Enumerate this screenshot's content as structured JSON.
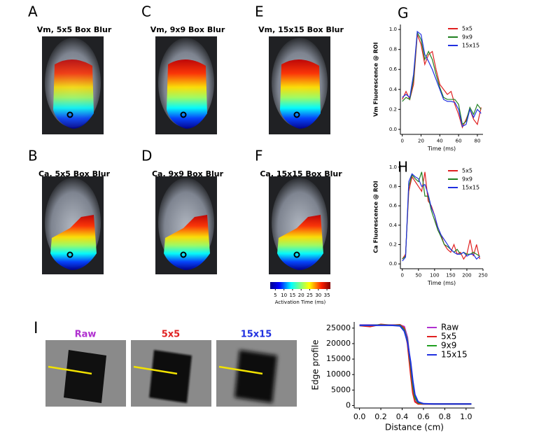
{
  "image_panels": [
    {
      "letter": "A",
      "title": "Vm, 5x5 Box Blur"
    },
    {
      "letter": "C",
      "title": "Vm, 9x9 Box Blur"
    },
    {
      "letter": "E",
      "title": "Vm, 15x15 Box Blur"
    },
    {
      "letter": "B",
      "title": "Ca, 5x5 Box Blur"
    },
    {
      "letter": "D",
      "title": "Ca, 9x9 Box Blur"
    },
    {
      "letter": "F",
      "title": "Ca, 15x15 Box Blur"
    }
  ],
  "colorbar": {
    "label": "Activation Time (ms)",
    "lim": [
      2,
      37
    ],
    "ticks": [
      5,
      10,
      15,
      20,
      25,
      30,
      35
    ]
  },
  "edge_images": {
    "letter": "I",
    "labels": [
      {
        "text": "Raw",
        "color": "#b030d0"
      },
      {
        "text": "5x5",
        "color": "#e02020"
      },
      {
        "text": "15x15",
        "color": "#2030e0"
      }
    ]
  },
  "chart_data": [
    {
      "type": "line",
      "panel": "G",
      "ylabel": "Vm Fluorescence @ ROI",
      "xlabel": "Time (ms)",
      "xlim": [
        -2,
        86
      ],
      "ylim": [
        -0.05,
        1.05
      ],
      "xticks": [
        0,
        20,
        40,
        60,
        80
      ],
      "yticks": [
        {
          "value": 0,
          "label": "0.0"
        },
        0.2,
        0.4,
        0.6,
        0.8,
        {
          "value": 1,
          "label": "1.0"
        }
      ],
      "legend": "upper right",
      "x": [
        0,
        4,
        8,
        12,
        16,
        20,
        24,
        28,
        32,
        36,
        40,
        44,
        48,
        52,
        56,
        60,
        64,
        68,
        72,
        76,
        80,
        84
      ],
      "series": [
        {
          "name": "5x5",
          "color": "#e02020",
          "values": [
            0.3,
            0.38,
            0.3,
            0.45,
            0.95,
            0.85,
            0.65,
            0.75,
            0.78,
            0.6,
            0.45,
            0.4,
            0.35,
            0.38,
            0.25,
            0.15,
            0.02,
            0.1,
            0.2,
            0.1,
            0.05,
            0.22
          ]
        },
        {
          "name": "9x9",
          "color": "#208020",
          "values": [
            0.28,
            0.32,
            0.3,
            0.5,
            0.97,
            0.9,
            0.7,
            0.78,
            0.7,
            0.55,
            0.42,
            0.32,
            0.3,
            0.3,
            0.3,
            0.25,
            0.05,
            0.08,
            0.22,
            0.15,
            0.25,
            0.2
          ]
        },
        {
          "name": "15x15",
          "color": "#2030e0",
          "values": [
            0.32,
            0.35,
            0.32,
            0.55,
            0.98,
            0.95,
            0.75,
            0.68,
            0.6,
            0.5,
            0.4,
            0.3,
            0.28,
            0.28,
            0.27,
            0.2,
            0.03,
            0.05,
            0.2,
            0.12,
            0.2,
            0.16
          ]
        }
      ]
    },
    {
      "type": "line",
      "panel": "H",
      "ylabel": "Ca Fluorescence @ ROI",
      "xlabel": "Time (ms)",
      "xlim": [
        -6,
        250
      ],
      "ylim": [
        -0.05,
        1.02
      ],
      "xticks": [
        0,
        50,
        100,
        150,
        200,
        250
      ],
      "yticks": [
        {
          "value": 0,
          "label": "0.0"
        },
        0.2,
        0.4,
        0.6,
        0.8,
        {
          "value": 1,
          "label": "1.0"
        }
      ],
      "legend": "upper right",
      "x": [
        0,
        10,
        20,
        30,
        40,
        50,
        60,
        70,
        80,
        90,
        100,
        110,
        120,
        130,
        140,
        150,
        160,
        170,
        180,
        190,
        200,
        210,
        220,
        230,
        240
      ],
      "series": [
        {
          "name": "5x5",
          "color": "#e02020",
          "values": [
            0.05,
            0.1,
            0.75,
            0.9,
            0.85,
            0.8,
            0.75,
            0.95,
            0.65,
            0.6,
            0.5,
            0.35,
            0.3,
            0.2,
            0.15,
            0.12,
            0.2,
            0.1,
            0.12,
            0.05,
            0.1,
            0.25,
            0.08,
            0.2,
            0.05
          ]
        },
        {
          "name": "9x9",
          "color": "#208020",
          "values": [
            0.05,
            0.08,
            0.8,
            0.92,
            0.88,
            0.85,
            0.95,
            0.7,
            0.7,
            0.55,
            0.45,
            0.35,
            0.28,
            0.2,
            0.18,
            0.15,
            0.12,
            0.15,
            0.1,
            0.12,
            0.1,
            0.1,
            0.12,
            0.1,
            0.08
          ]
        },
        {
          "name": "15x15",
          "color": "#2030e0",
          "values": [
            0.03,
            0.07,
            0.85,
            0.93,
            0.9,
            0.88,
            0.8,
            0.82,
            0.72,
            0.58,
            0.5,
            0.38,
            0.3,
            0.25,
            0.2,
            0.15,
            0.12,
            0.1,
            0.1,
            0.12,
            0.08,
            0.1,
            0.1,
            0.05,
            0.08
          ]
        }
      ]
    },
    {
      "type": "line",
      "panel": "",
      "ylabel": "Edge profile",
      "xlabel": "Distance (cm)",
      "xlim": [
        -0.05,
        1.08
      ],
      "ylim": [
        -800,
        27000
      ],
      "xticks": [
        {
          "value": 0,
          "label": "0.0"
        },
        0.2,
        0.4,
        0.6,
        0.8,
        {
          "value": 1,
          "label": "1.0"
        }
      ],
      "yticks": [
        0,
        5000,
        10000,
        15000,
        20000,
        25000
      ],
      "legend": "upper right",
      "x": [
        0,
        0.1,
        0.2,
        0.3,
        0.38,
        0.42,
        0.45,
        0.48,
        0.5,
        0.52,
        0.55,
        0.6,
        0.7,
        0.8,
        0.9,
        1.0,
        1.05
      ],
      "series": [
        {
          "name": "Raw",
          "color": "#b030d0",
          "values": [
            26000,
            26000,
            26000,
            26000,
            26000,
            25500,
            22000,
            12000,
            5000,
            1500,
            600,
            500,
            500,
            500,
            500,
            500,
            500
          ]
        },
        {
          "name": "5x5",
          "color": "#e02020",
          "values": [
            25800,
            25500,
            26200,
            25900,
            26100,
            25000,
            20000,
            10000,
            4000,
            1200,
            500,
            500,
            500,
            500,
            500,
            500,
            500
          ]
        },
        {
          "name": "9x9",
          "color": "#20a020",
          "values": [
            25900,
            25900,
            26000,
            25900,
            25900,
            24500,
            21000,
            13000,
            6500,
            2500,
            900,
            550,
            500,
            500,
            500,
            500,
            500
          ]
        },
        {
          "name": "15x15",
          "color": "#2030e0",
          "values": [
            25900,
            25900,
            25900,
            25900,
            25700,
            24000,
            20500,
            14000,
            8000,
            3500,
            1200,
            600,
            500,
            500,
            500,
            500,
            500
          ]
        }
      ]
    }
  ]
}
